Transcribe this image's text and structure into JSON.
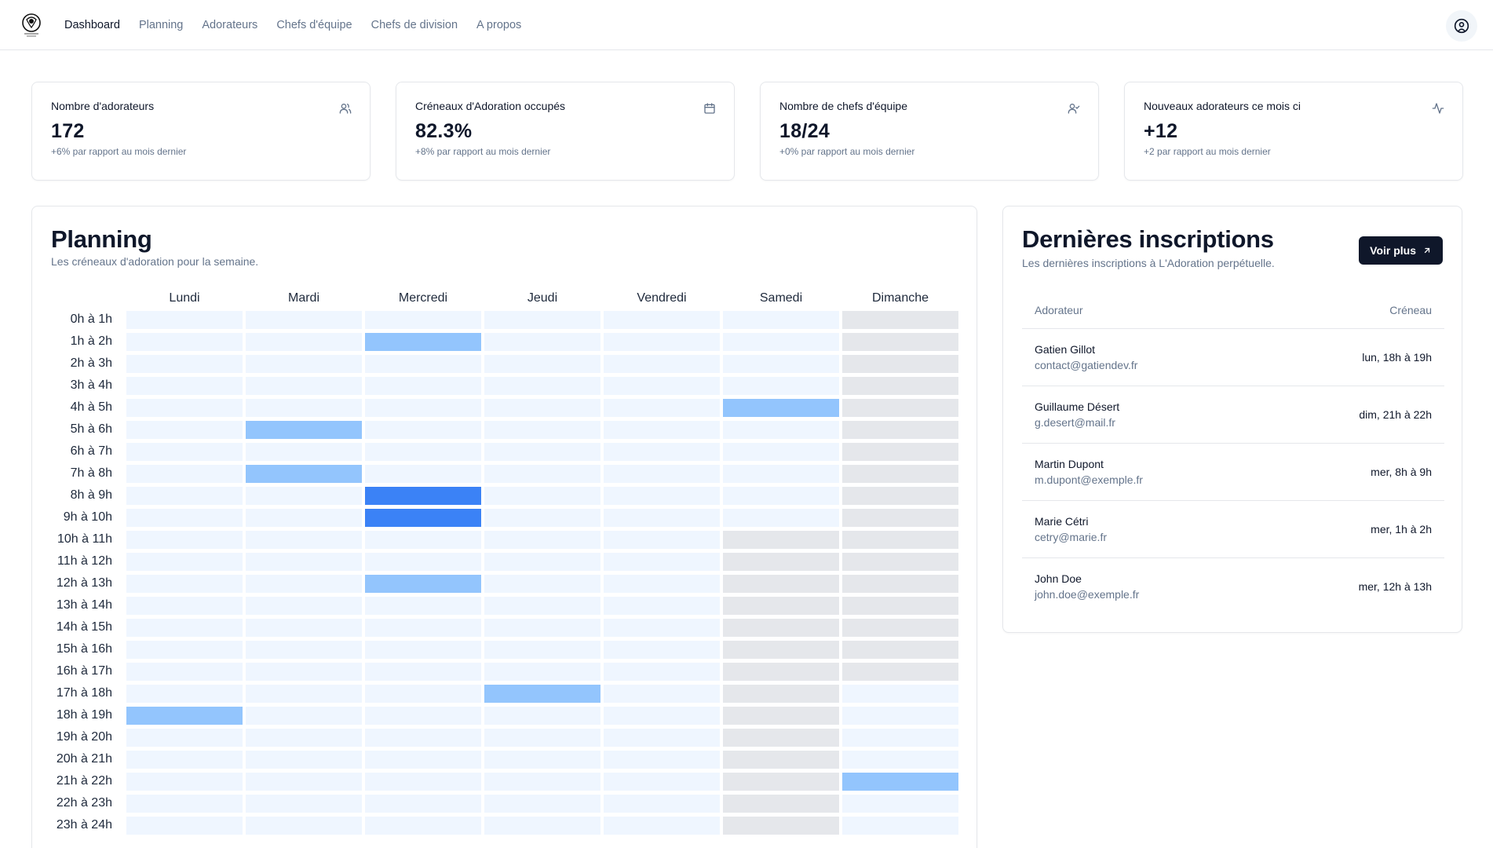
{
  "nav": {
    "items": [
      {
        "label": "Dashboard",
        "active": true
      },
      {
        "label": "Planning",
        "active": false
      },
      {
        "label": "Adorateurs",
        "active": false
      },
      {
        "label": "Chefs d'équipe",
        "active": false
      },
      {
        "label": "Chefs de division",
        "active": false
      },
      {
        "label": "A propos",
        "active": false
      }
    ]
  },
  "stats": [
    {
      "title": "Nombre d'adorateurs",
      "value": "172",
      "sub": "+6% par rapport au mois dernier",
      "icon": "users-icon"
    },
    {
      "title": "Créneaux d'Adoration occupés",
      "value": "82.3%",
      "sub": "+8% par rapport au mois dernier",
      "icon": "calendar-icon"
    },
    {
      "title": "Nombre de chefs d'équipe",
      "value": "18/24",
      "sub": "+0% par rapport au mois dernier",
      "icon": "user-check-icon"
    },
    {
      "title": "Nouveaux adorateurs ce mois ci",
      "value": "+12",
      "sub": "+2 par rapport au mois dernier",
      "icon": "activity-icon"
    }
  ],
  "planning": {
    "title": "Planning",
    "description": "Les créneaux d'adoration pour la semaine.",
    "days": [
      "Lundi",
      "Mardi",
      "Mercredi",
      "Jeudi",
      "Vendredi",
      "Samedi",
      "Dimanche"
    ],
    "hours": [
      "0h à 1h",
      "1h à 2h",
      "2h à 3h",
      "3h à 4h",
      "4h à 5h",
      "5h à 6h",
      "6h à 7h",
      "7h à 8h",
      "8h à 9h",
      "9h à 10h",
      "10h à 11h",
      "11h à 12h",
      "12h à 13h",
      "13h à 14h",
      "14h à 15h",
      "15h à 16h",
      "16h à 17h",
      "17h à 18h",
      "18h à 19h",
      "19h à 20h",
      "20h à 21h",
      "21h à 22h",
      "22h à 23h",
      "23h à 24h"
    ],
    "booked": [
      {
        "day": 2,
        "hour": 1,
        "level": 1
      },
      {
        "day": 5,
        "hour": 4,
        "level": 1
      },
      {
        "day": 1,
        "hour": 5,
        "level": 1
      },
      {
        "day": 1,
        "hour": 7,
        "level": 1
      },
      {
        "day": 2,
        "hour": 8,
        "level": 2
      },
      {
        "day": 2,
        "hour": 9,
        "level": 2
      },
      {
        "day": 2,
        "hour": 12,
        "level": 1
      },
      {
        "day": 3,
        "hour": 17,
        "level": 1
      },
      {
        "day": 0,
        "hour": 18,
        "level": 1
      },
      {
        "day": 6,
        "hour": 21,
        "level": 1
      }
    ],
    "unavailable": {
      "day5_from_hour": 10,
      "day6_hours_to": 16
    },
    "colors": {
      "free": "#eff6ff",
      "unavailable": "#e5e7eb",
      "level1": "#93c5fd",
      "level2": "#3b82f6"
    }
  },
  "recent": {
    "title": "Dernières inscriptions",
    "description": "Les dernières inscriptions à L'Adoration perpétuelle.",
    "button_label": "Voir plus",
    "col_adorateur": "Adorateur",
    "col_creneau": "Créneau",
    "rows": [
      {
        "name": "Gatien Gillot",
        "email": "contact@gatiendev.fr",
        "slot": "lun, 18h à 19h"
      },
      {
        "name": "Guillaume Désert",
        "email": "g.desert@mail.fr",
        "slot": "dim, 21h à 22h"
      },
      {
        "name": "Martin Dupont",
        "email": "m.dupont@exemple.fr",
        "slot": "mer, 8h à 9h"
      },
      {
        "name": "Marie Cétri",
        "email": "cetry@marie.fr",
        "slot": "mer, 1h à 2h"
      },
      {
        "name": "John Doe",
        "email": "john.doe@exemple.fr",
        "slot": "mer, 12h à 13h"
      }
    ]
  }
}
